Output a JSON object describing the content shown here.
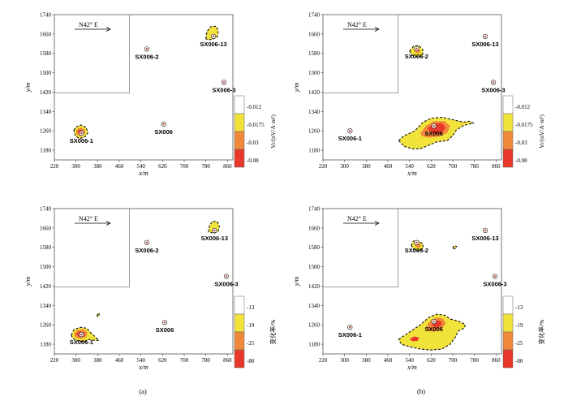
{
  "figure": {
    "captions": [
      "(a)",
      "(b)"
    ]
  },
  "chart_data": [
    {
      "type": "contour-map",
      "panel": "top-left",
      "xlabel": "x/m",
      "ylabel": "y/m",
      "xlim": [
        220,
        880
      ],
      "ylim": [
        1140,
        1740
      ],
      "xticks": [
        "220",
        "300",
        "380",
        "460",
        "540",
        "620",
        "700",
        "780",
        "860"
      ],
      "yticks": [
        "1180",
        "1260",
        "1340",
        "1420",
        "1500",
        "1580",
        "1660",
        "1740"
      ],
      "annotation": "N42° E",
      "stations": [
        {
          "name": "SX006-1",
          "x": 320,
          "y": 1250
        },
        {
          "name": "SX006-2",
          "x": 562,
          "y": 1598
        },
        {
          "name": "SX006-13",
          "x": 808,
          "y": 1650
        },
        {
          "name": "SX006-3",
          "x": 847,
          "y": 1460
        },
        {
          "name": "SX006",
          "x": 624,
          "y": 1288
        }
      ],
      "colorbar": {
        "title": "Vr/(nV/A·m²)",
        "ticks": [
          "-0.012",
          "-0.0175",
          "-0.03",
          "-0.08"
        ],
        "colors": [
          "#ffffff",
          "#f2e33b",
          "#f08a3a",
          "#e8382c"
        ]
      },
      "anomalies": [
        {
          "levels": [
            [
              [
                292,
                1262
              ],
              [
                300,
                1276
              ],
              [
                318,
                1284
              ],
              [
                338,
                1274
              ],
              [
                344,
                1252
              ],
              [
                334,
                1236
              ],
              [
                314,
                1228
              ],
              [
                298,
                1238
              ]
            ],
            [
              [
                300,
                1262
              ],
              [
                314,
                1274
              ],
              [
                332,
                1266
              ],
              [
                334,
                1248
              ],
              [
                316,
                1238
              ],
              [
                302,
                1246
              ]
            ],
            [
              [
                306,
                1258
              ],
              [
                316,
                1266
              ],
              [
                328,
                1258
              ],
              [
                324,
                1246
              ],
              [
                310,
                1248
              ]
            ]
          ]
        },
        {
          "levels": [
            [
              [
                780,
                1640
              ],
              [
                784,
                1670
              ],
              [
                798,
                1690
              ],
              [
                818,
                1692
              ],
              [
                826,
                1672
              ],
              [
                822,
                1648
              ],
              [
                806,
                1638
              ],
              [
                790,
                1636
              ]
            ]
          ]
        }
      ]
    },
    {
      "type": "contour-map",
      "panel": "top-right",
      "xlabel": "x/m",
      "ylabel": "y/m",
      "xlim": [
        220,
        880
      ],
      "ylim": [
        1140,
        1740
      ],
      "xticks": [
        "220",
        "300",
        "380",
        "460",
        "540",
        "620",
        "700",
        "780",
        "860"
      ],
      "yticks": [
        "1180",
        "1260",
        "1340",
        "1420",
        "1500",
        "1580",
        "1660",
        "1740"
      ],
      "annotation": "N42° E",
      "stations": [
        {
          "name": "SX006-1",
          "x": 320,
          "y": 1260
        },
        {
          "name": "SX006-2",
          "x": 566,
          "y": 1600
        },
        {
          "name": "SX006-13",
          "x": 820,
          "y": 1650
        },
        {
          "name": "SX006-3",
          "x": 850,
          "y": 1460
        },
        {
          "name": "SX006",
          "x": 630,
          "y": 1280
        }
      ],
      "colorbar": {
        "title": "Vr/(nV/A·m²)",
        "ticks": [
          "-0.012",
          "-0.0175",
          "-0.03",
          "-0.08"
        ],
        "colors": [
          "#ffffff",
          "#f2e33b",
          "#f08a3a",
          "#e8382c"
        ]
      },
      "anomalies": [
        {
          "levels": [
            [
              [
                540,
                1590
              ],
              [
                555,
                1610
              ],
              [
                575,
                1612
              ],
              [
                590,
                1594
              ],
              [
                588,
                1570
              ],
              [
                570,
                1566
              ],
              [
                550,
                1572
              ]
            ],
            [
              [
                556,
                1596
              ],
              [
                572,
                1602
              ],
              [
                582,
                1590
              ],
              [
                574,
                1580
              ],
              [
                560,
                1584
              ]
            ]
          ]
        },
        {
          "levels": [
            [
              [
                500,
                1220
              ],
              [
                520,
                1240
              ],
              [
                560,
                1260
              ],
              [
                590,
                1296
              ],
              [
                620,
                1312
              ],
              [
                660,
                1316
              ],
              [
                700,
                1306
              ],
              [
                740,
                1296
              ],
              [
                760,
                1300
              ],
              [
                776,
                1292
              ],
              [
                740,
                1282
              ],
              [
                712,
                1262
              ],
              [
                700,
                1240
              ],
              [
                680,
                1220
              ],
              [
                640,
                1214
              ],
              [
                610,
                1200
              ],
              [
                580,
                1186
              ],
              [
                550,
                1186
              ],
              [
                520,
                1196
              ]
            ],
            [
              [
                580,
                1250
              ],
              [
                600,
                1280
              ],
              [
                630,
                1300
              ],
              [
                670,
                1300
              ],
              [
                690,
                1280
              ],
              [
                680,
                1252
              ],
              [
                650,
                1236
              ],
              [
                610,
                1232
              ],
              [
                586,
                1238
              ]
            ],
            [
              [
                606,
                1268
              ],
              [
                626,
                1290
              ],
              [
                660,
                1292
              ],
              [
                674,
                1274
              ],
              [
                660,
                1252
              ],
              [
                630,
                1246
              ]
            ]
          ]
        }
      ]
    },
    {
      "type": "contour-map",
      "panel": "bottom-left",
      "xlabel": "x/m",
      "ylabel": "y/m",
      "xlim": [
        220,
        880
      ],
      "ylim": [
        1140,
        1740
      ],
      "xticks": [
        "220",
        "300",
        "380",
        "460",
        "540",
        "620",
        "700",
        "780",
        "860"
      ],
      "yticks": [
        "1180",
        "1260",
        "1340",
        "1420",
        "1500",
        "1580",
        "1660",
        "1740"
      ],
      "annotation": "N42° E",
      "stations": [
        {
          "name": "SX006-1",
          "x": 320,
          "y": 1220
        },
        {
          "name": "SX006-2",
          "x": 562,
          "y": 1600
        },
        {
          "name": "SX006-13",
          "x": 812,
          "y": 1650
        },
        {
          "name": "SX006-3",
          "x": 856,
          "y": 1460
        },
        {
          "name": "SX006",
          "x": 628,
          "y": 1270
        }
      ],
      "colorbar": {
        "title": "变化率/%",
        "ticks": [
          "-13",
          "-19",
          "-25",
          "-80"
        ],
        "colors": [
          "#ffffff",
          "#f2e33b",
          "#f08a3a",
          "#e8382c"
        ]
      },
      "anomalies": [
        {
          "levels": [
            [
              [
                282,
                1218
              ],
              [
                292,
                1240
              ],
              [
                316,
                1250
              ],
              [
                340,
                1246
              ],
              [
                352,
                1230
              ],
              [
                370,
                1212
              ],
              [
                384,
                1196
              ],
              [
                368,
                1196
              ],
              [
                350,
                1200
              ],
              [
                330,
                1190
              ],
              [
                306,
                1194
              ],
              [
                288,
                1204
              ]
            ],
            [
              [
                292,
                1222
              ],
              [
                304,
                1238
              ],
              [
                326,
                1242
              ],
              [
                342,
                1230
              ],
              [
                338,
                1210
              ],
              [
                316,
                1202
              ],
              [
                298,
                1208
              ]
            ],
            [
              [
                300,
                1222
              ],
              [
                314,
                1234
              ],
              [
                332,
                1228
              ],
              [
                330,
                1212
              ],
              [
                312,
                1210
              ]
            ]
          ]
        },
        {
          "levels": [
            [
              [
                790,
                1644
              ],
              [
                794,
                1672
              ],
              [
                806,
                1688
              ],
              [
                822,
                1686
              ],
              [
                830,
                1666
              ],
              [
                826,
                1646
              ],
              [
                810,
                1638
              ]
            ]
          ]
        },
        {
          "levels": [
            [
              [
                378,
                1296
              ],
              [
                380,
                1308
              ],
              [
                386,
                1306
              ],
              [
                384,
                1294
              ]
            ]
          ]
        }
      ]
    },
    {
      "type": "contour-map",
      "panel": "bottom-right",
      "xlabel": "x/m",
      "ylabel": "y/m",
      "xlim": [
        220,
        880
      ],
      "ylim": [
        1140,
        1740
      ],
      "xticks": [
        "220",
        "300",
        "380",
        "460",
        "540",
        "620",
        "700",
        "780",
        "860"
      ],
      "yticks": [
        "1180",
        "1260",
        "1340",
        "1420",
        "1500",
        "1580",
        "1660",
        "1740"
      ],
      "annotation": "N42° E",
      "stations": [
        {
          "name": "SX006-1",
          "x": 320,
          "y": 1250
        },
        {
          "name": "SX006-2",
          "x": 566,
          "y": 1600
        },
        {
          "name": "SX006-13",
          "x": 820,
          "y": 1650
        },
        {
          "name": "SX006-3",
          "x": 856,
          "y": 1460
        },
        {
          "name": "SX006",
          "x": 630,
          "y": 1274
        }
      ],
      "colorbar": {
        "title": "变化率/%",
        "ticks": [
          "-13",
          "-19",
          "-25",
          "-80"
        ],
        "colors": [
          "#ffffff",
          "#f2e33b",
          "#f08a3a",
          "#e8382c"
        ]
      },
      "anomalies": [
        {
          "levels": [
            [
              [
                546,
                1588
              ],
              [
                554,
                1606
              ],
              [
                574,
                1606
              ],
              [
                590,
                1594
              ],
              [
                590,
                1574
              ],
              [
                574,
                1566
              ],
              [
                556,
                1572
              ]
            ],
            [
              [
                560,
                1584
              ],
              [
                566,
                1598
              ],
              [
                580,
                1596
              ],
              [
                582,
                1582
              ],
              [
                570,
                1578
              ]
            ]
          ]
        },
        {
          "levels": [
            [
              [
                500,
                1200
              ],
              [
                540,
                1230
              ],
              [
                580,
                1260
              ],
              [
                610,
                1290
              ],
              [
                640,
                1304
              ],
              [
                670,
                1300
              ],
              [
                690,
                1284
              ],
              [
                720,
                1276
              ],
              [
                746,
                1262
              ],
              [
                744,
                1248
              ],
              [
                720,
                1234
              ],
              [
                710,
                1210
              ],
              [
                690,
                1180
              ],
              [
                660,
                1160
              ],
              [
                620,
                1156
              ],
              [
                580,
                1160
              ],
              [
                540,
                1170
              ],
              [
                510,
                1180
              ]
            ],
            [
              [
                600,
                1250
              ],
              [
                616,
                1276
              ],
              [
                640,
                1290
              ],
              [
                664,
                1286
              ],
              [
                674,
                1266
              ],
              [
                660,
                1244
              ],
              [
                630,
                1232
              ],
              [
                608,
                1236
              ]
            ],
            [
              [
                620,
                1260
              ],
              [
                636,
                1278
              ],
              [
                656,
                1276
              ],
              [
                660,
                1260
              ],
              [
                640,
                1248
              ]
            ],
            [
              [
                540,
                1200
              ],
              [
                556,
                1212
              ],
              [
                576,
                1208
              ],
              [
                570,
                1194
              ],
              [
                552,
                1192
              ]
            ]
          ]
        },
        {
          "levels": [
            [
              [
                700,
                1576
              ],
              [
                704,
                1586
              ],
              [
                714,
                1584
              ],
              [
                710,
                1574
              ]
            ]
          ]
        }
      ]
    }
  ]
}
